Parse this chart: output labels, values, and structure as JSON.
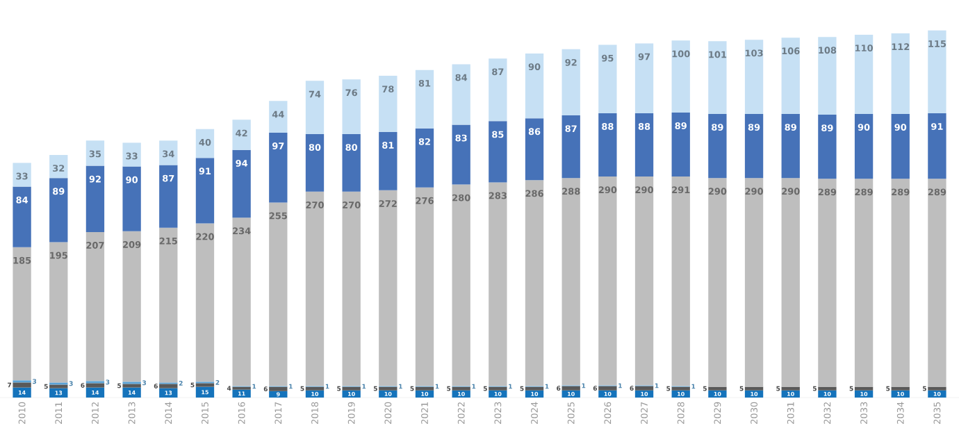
{
  "chart_data": {
    "type": "bar",
    "stacked": true,
    "data_labels": true,
    "categories": [
      "2010",
      "2011",
      "2012",
      "2013",
      "2014",
      "2015",
      "2016",
      "2017",
      "2018",
      "2019",
      "2020",
      "2021",
      "2022",
      "2023",
      "2024",
      "2025",
      "2026",
      "2027",
      "2028",
      "2029",
      "2030",
      "2031",
      "2032",
      "2033",
      "2034",
      "2035"
    ],
    "series": [
      {
        "color": "#1573bb",
        "values": [
          14,
          13,
          14,
          14,
          13,
          15,
          11,
          9,
          10,
          10,
          10,
          10,
          10,
          10,
          10,
          10,
          10,
          10,
          10,
          10,
          10,
          10,
          10,
          10,
          10,
          10
        ]
      },
      {
        "color": "#595959",
        "values": [
          7,
          5,
          6,
          5,
          6,
          5,
          4,
          6,
          5,
          5,
          5,
          5,
          5,
          5,
          5,
          6,
          6,
          6,
          5,
          5,
          5,
          5,
          5,
          5,
          5,
          5
        ]
      },
      {
        "color": "#5ba3d6",
        "values": [
          3,
          3,
          3,
          3,
          2,
          2,
          1,
          1,
          1,
          1,
          1,
          1,
          1,
          1,
          1,
          1,
          1,
          1,
          1,
          null,
          null,
          null,
          null,
          null,
          null,
          null
        ]
      },
      {
        "color": "#bebebe",
        "values": [
          185,
          195,
          207,
          209,
          215,
          220,
          234,
          255,
          270,
          270,
          272,
          276,
          280,
          283,
          286,
          288,
          290,
          290,
          291,
          290,
          290,
          290,
          289,
          289,
          289,
          289
        ]
      },
      {
        "color": "#4672b8",
        "values": [
          84,
          89,
          92,
          90,
          87,
          91,
          94,
          97,
          80,
          80,
          81,
          82,
          83,
          85,
          86,
          87,
          88,
          88,
          89,
          89,
          89,
          89,
          89,
          90,
          90,
          91
        ]
      },
      {
        "color": "#c6e0f4",
        "values": [
          33,
          32,
          35,
          33,
          34,
          40,
          42,
          44,
          74,
          76,
          78,
          81,
          84,
          87,
          90,
          92,
          95,
          97,
          100,
          101,
          103,
          106,
          108,
          110,
          112,
          115
        ]
      }
    ]
  }
}
